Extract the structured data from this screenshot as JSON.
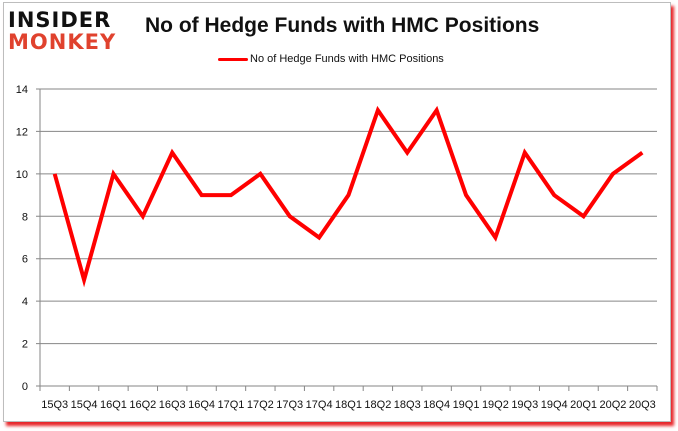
{
  "logo": {
    "line1": "INSIDER",
    "line2": "MONKEY"
  },
  "chart_data": {
    "type": "line",
    "title": "No of Hedge Funds with HMC Positions",
    "xlabel": "",
    "ylabel": "",
    "categories": [
      "15Q3",
      "15Q4",
      "16Q1",
      "16Q2",
      "16Q3",
      "16Q4",
      "17Q1",
      "17Q2",
      "17Q3",
      "17Q4",
      "18Q1",
      "18Q2",
      "18Q3",
      "18Q4",
      "19Q1",
      "19Q2",
      "19Q3",
      "19Q4",
      "20Q1",
      "20Q2",
      "20Q3"
    ],
    "series": [
      {
        "name": "No of Hedge Funds with HMC Positions",
        "color": "#ff0000",
        "values": [
          10,
          5,
          10,
          8,
          11,
          9,
          9,
          10,
          8,
          7,
          9,
          13,
          11,
          13,
          9,
          7,
          11,
          9,
          8,
          10,
          11
        ]
      }
    ],
    "ylim": [
      0,
      14
    ],
    "yticks": [
      0,
      2,
      4,
      6,
      8,
      10,
      12,
      14
    ],
    "grid": true,
    "legend_position": "top"
  }
}
